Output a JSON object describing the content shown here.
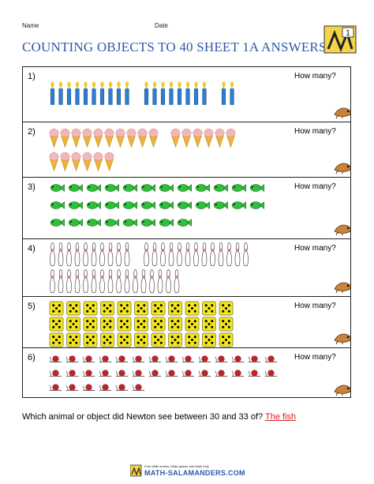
{
  "header": {
    "name_label": "Name",
    "date_label": "Date",
    "title": "COUNTING OBJECTS TO 40 SHEET 1A ANSWERS",
    "logo_number": "1"
  },
  "questions": [
    {
      "number": "1)",
      "prompt": "How many?",
      "object": "candle-icon",
      "count": 20
    },
    {
      "number": "2)",
      "prompt": "How many?",
      "object": "ice-cream-cone-icon",
      "count": 22
    },
    {
      "number": "3)",
      "prompt": "How many?",
      "object": "fish-icon",
      "count": 32
    },
    {
      "number": "4)",
      "prompt": "How many?",
      "object": "bowling-pin-icon",
      "count": 39
    },
    {
      "number": "5)",
      "prompt": "How many?",
      "object": "dice-icon",
      "count": 33
    },
    {
      "number": "6)",
      "prompt": "How many?",
      "object": "snail-icon",
      "count": 34
    }
  ],
  "footer_question": {
    "text": "Which animal or object did Newton see between 30 and 33 of?",
    "answer": "The fish"
  },
  "footer": {
    "line1": "Free Math sheets, Math games and Math help",
    "site": "MATH-SALAMANDERS.COM"
  },
  "colors": {
    "title": "#2e5aa8",
    "answer": "#e01b1b",
    "candle": "#2d7fd4",
    "cone": "#f2b233",
    "scoop": "#f2b8b8",
    "fish": "#2fbf3a",
    "pin": "#ffffff",
    "die": "#f2e51a",
    "snail": "#d42a2a"
  }
}
